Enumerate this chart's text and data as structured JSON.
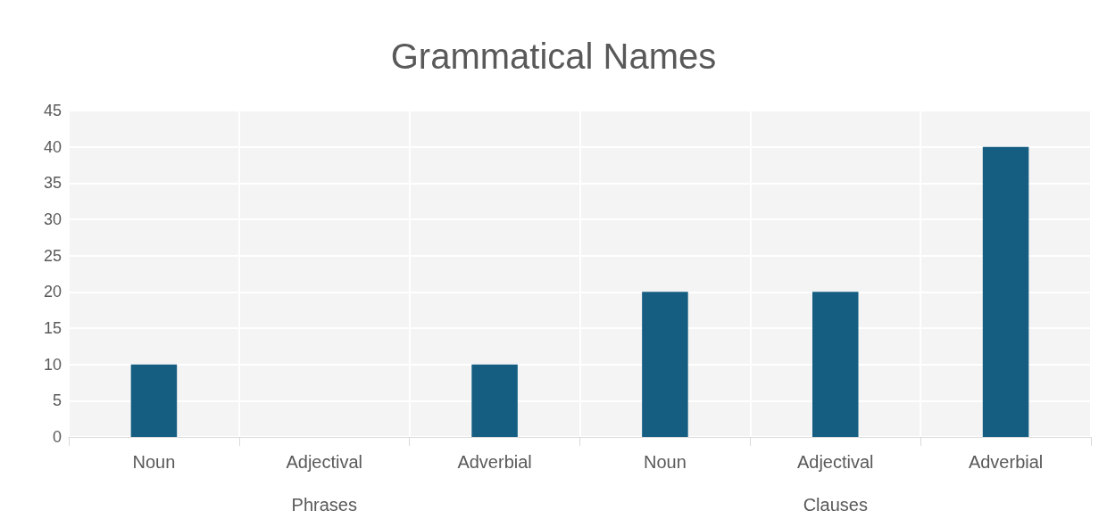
{
  "chart_data": {
    "type": "bar",
    "title": "Grammatical Names",
    "categories": [
      "Noun",
      "Adjectival",
      "Adverbial",
      "Noun",
      "Adjectival",
      "Adverbial"
    ],
    "values": [
      10,
      0,
      10,
      20,
      20,
      40
    ],
    "color": "#155e82",
    "ylim": [
      0,
      45
    ],
    "yticks": [
      0,
      5,
      10,
      15,
      20,
      25,
      30,
      35,
      40,
      45
    ],
    "grid": true,
    "annotations": [
      "Phrases",
      "Clauses"
    ]
  }
}
